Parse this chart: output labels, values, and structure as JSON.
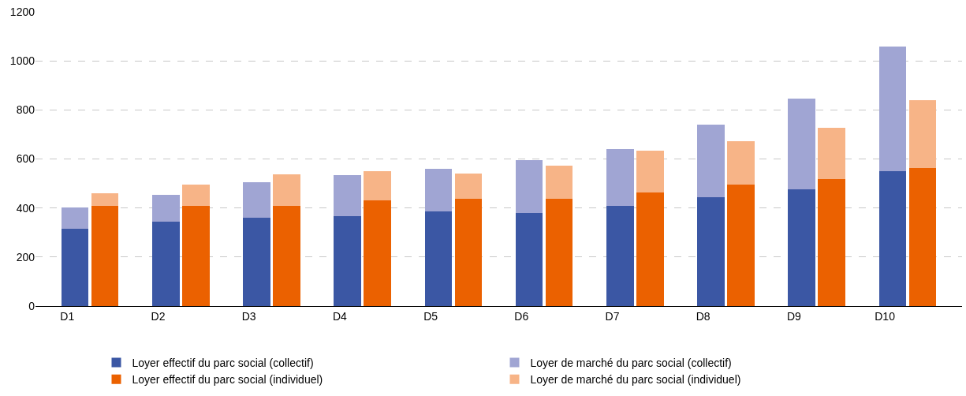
{
  "chart_data": {
    "type": "bar",
    "categories": [
      "D1",
      null,
      "D2",
      null,
      "D3",
      null,
      "D4",
      null,
      "D5",
      null,
      "D6",
      null,
      "D7",
      null,
      "D8",
      null,
      "D9",
      null,
      "D10",
      null
    ],
    "stacked": true,
    "series": [
      {
        "name": "Loyer effectif du parc social (collectif)",
        "color": "#3b57a4",
        "values": [
          314,
          null,
          345,
          null,
          360,
          null,
          367,
          null,
          385,
          null,
          379,
          null,
          410,
          null,
          445,
          null,
          476,
          null,
          550,
          null
        ]
      },
      {
        "name": "Loyer de marché du parc social (collectif)",
        "color": "#a0a5d3",
        "values": [
          87,
          null,
          109,
          null,
          144,
          null,
          168,
          null,
          175,
          null,
          215,
          null,
          230,
          null,
          295,
          null,
          370,
          null,
          510,
          null
        ]
      },
      {
        "name": "Loyer effectif du parc social (individuel)",
        "color": "#eb6100",
        "values": [
          null,
          407,
          null,
          410,
          null,
          407,
          null,
          432,
          null,
          438,
          null,
          438,
          null,
          463,
          null,
          494,
          null,
          519,
          null,
          563
        ]
      },
      {
        "name": "Loyer de marché du parc social (individuel)",
        "color": "#f7b487",
        "values": [
          null,
          53,
          null,
          87,
          null,
          131,
          null,
          118,
          null,
          103,
          null,
          134,
          null,
          171,
          null,
          177,
          null,
          208,
          null,
          276
        ]
      }
    ],
    "ylim": [
      0,
      1200
    ],
    "yticks": [
      0,
      200,
      400,
      600,
      800,
      1000,
      1200
    ],
    "grid": "y",
    "legend": "bottom"
  }
}
